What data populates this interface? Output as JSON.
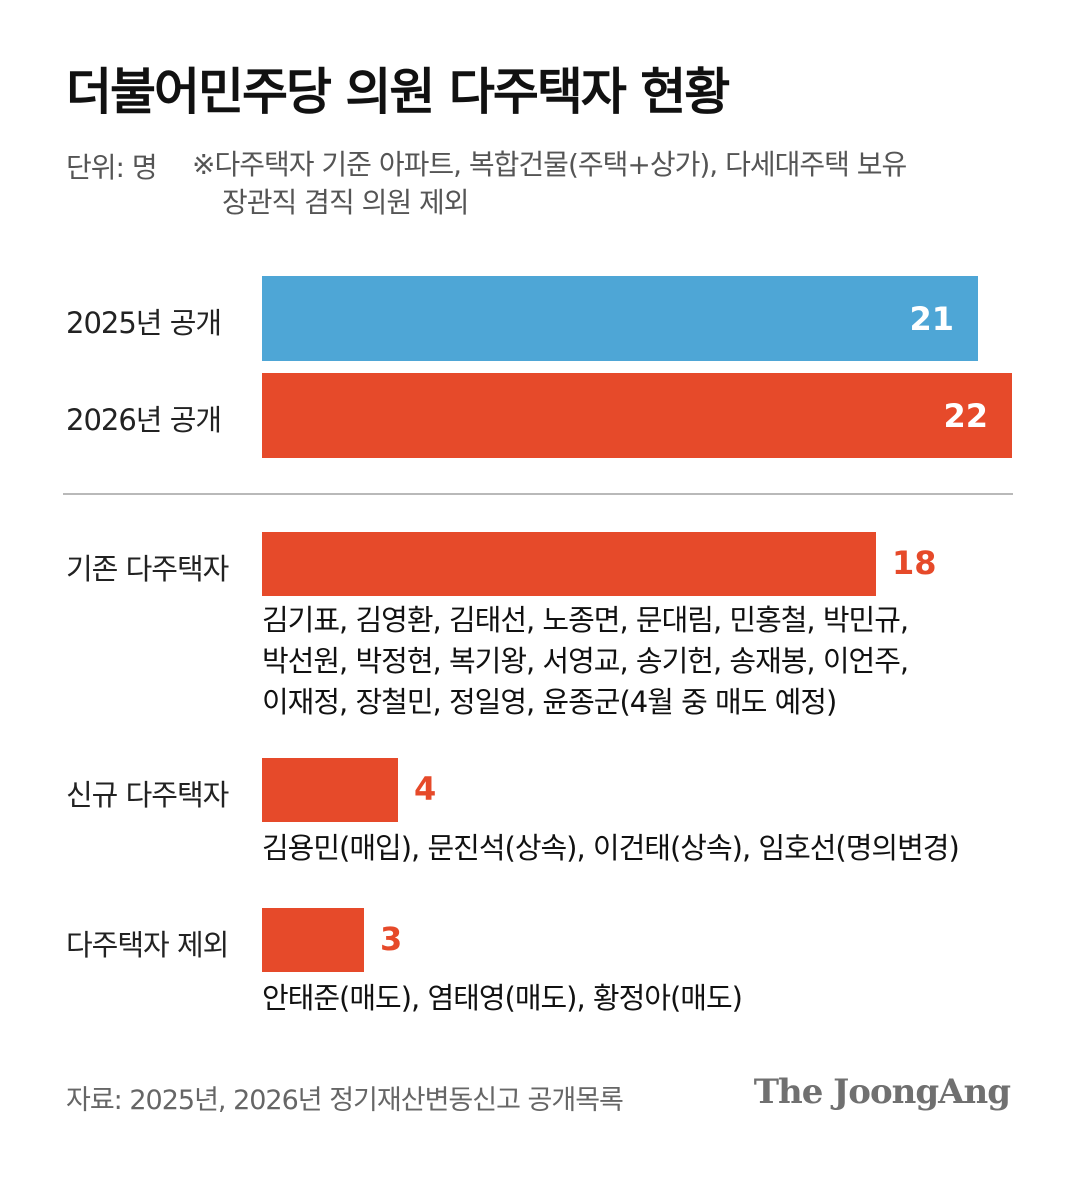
{
  "title": "더불어민주당 의원 다주택자 현황",
  "unit": "단위: 명",
  "note_lines": [
    "※다주택자 기준 아파트, 복합건물(주택+상가), 다세대주택 보유",
    "장관직 겸직 의원 제외"
  ],
  "chart_data": [
    {
      "type": "bar",
      "categories": [
        "2025년 공개",
        "2026년 공개"
      ],
      "values": [
        21,
        22
      ],
      "colors": [
        "#4ea6d6",
        "#e64a2a"
      ],
      "xlim": [
        0,
        22
      ]
    },
    {
      "type": "bar",
      "categories": [
        "기존 다주택자",
        "신규 다주택자",
        "다주택자 제외"
      ],
      "values": [
        18,
        4,
        3
      ],
      "color": "#e64a2a",
      "xlim": [
        0,
        22
      ],
      "names": [
        [
          "김기표, 김영환, 김태선, 노종면, 문대림, 민홍철, 박민규,",
          "박선원, 박정현, 복기왕, 서영교, 송기헌, 송재봉, 이언주,",
          "이재정, 장철민, 정일영, 윤종군(4월 중 매도 예정)"
        ],
        [
          "김용민(매입), 문진석(상속), 이건태(상속), 임호선(명의변경)"
        ],
        [
          "안태준(매도), 염태영(매도), 황정아(매도)"
        ]
      ]
    }
  ],
  "source": "자료: 2025년, 2026년 정기재산변동신고 공개목록",
  "logo": "The JoongAng",
  "colors": {
    "blue": "#4ea6d6",
    "red": "#e64a2a"
  }
}
